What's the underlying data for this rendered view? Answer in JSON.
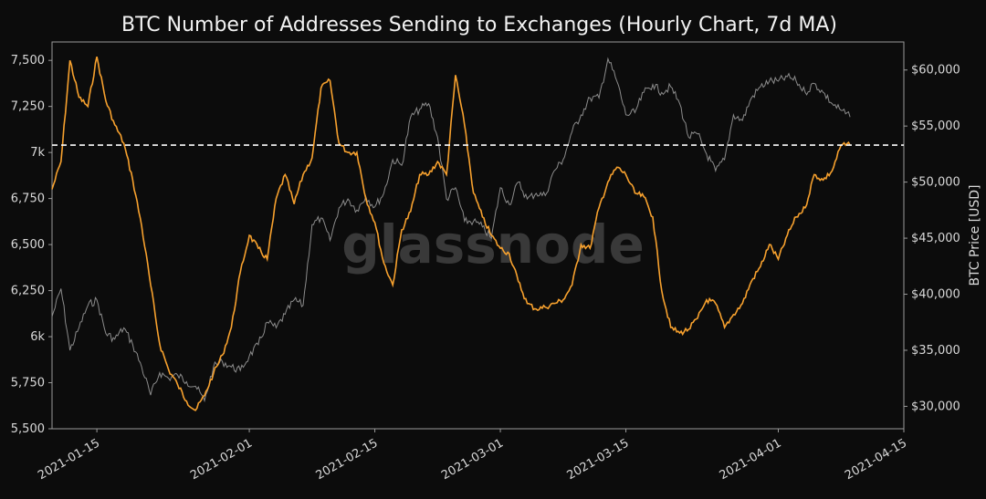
{
  "colors": {
    "background": "#0c0c0c",
    "plot_background": "#0c0c0c",
    "address_line": "#f7a12e",
    "price_line": "#8c8c8c",
    "threshold_line": "#ffffff",
    "axis": "#9a9a9a"
  },
  "watermark": "glassnode",
  "chart_data": {
    "type": "line",
    "title": "BTC Number of Addresses Sending to Exchanges (Hourly Chart, 7d MA)",
    "xlabel": "",
    "ylabel": "",
    "y2label": "BTC Price [USD]",
    "x_range": [
      "2021-01-10",
      "2021-04-15"
    ],
    "ylim": [
      5500,
      7600
    ],
    "y2lim": [
      28000,
      62500
    ],
    "x_ticks": [
      "2021-01-15",
      "2021-02-01",
      "2021-02-15",
      "2021-03-01",
      "2021-03-15",
      "2021-04-01",
      "2021-04-15"
    ],
    "y_ticks": [
      {
        "value": 5500,
        "label": "5,500"
      },
      {
        "value": 5750,
        "label": "5,750"
      },
      {
        "value": 6000,
        "label": "6k"
      },
      {
        "value": 6250,
        "label": "6,250"
      },
      {
        "value": 6500,
        "label": "6,500"
      },
      {
        "value": 6750,
        "label": "6,750"
      },
      {
        "value": 7000,
        "label": "7k"
      },
      {
        "value": 7250,
        "label": "7,250"
      },
      {
        "value": 7500,
        "label": "7,500"
      }
    ],
    "y2_ticks": [
      {
        "value": 30000,
        "label": "$30,000"
      },
      {
        "value": 35000,
        "label": "$35,000"
      },
      {
        "value": 40000,
        "label": "$40,000"
      },
      {
        "value": 45000,
        "label": "$45,000"
      },
      {
        "value": 50000,
        "label": "$50,000"
      },
      {
        "value": 55000,
        "label": "$55,000"
      },
      {
        "value": 60000,
        "label": "$60,000"
      }
    ],
    "threshold": 7040,
    "grid": false,
    "series": [
      {
        "axis": "left",
        "x": [
          "2021-01-10",
          "2021-01-11",
          "2021-01-12",
          "2021-01-13",
          "2021-01-14",
          "2021-01-15",
          "2021-01-16",
          "2021-01-17",
          "2021-01-18",
          "2021-01-19",
          "2021-01-20",
          "2021-01-21",
          "2021-01-22",
          "2021-01-23",
          "2021-01-24",
          "2021-01-25",
          "2021-01-26",
          "2021-01-27",
          "2021-01-28",
          "2021-01-29",
          "2021-01-30",
          "2021-01-31",
          "2021-02-01",
          "2021-02-02",
          "2021-02-03",
          "2021-02-04",
          "2021-02-05",
          "2021-02-06",
          "2021-02-07",
          "2021-02-08",
          "2021-02-09",
          "2021-02-10",
          "2021-02-11",
          "2021-02-12",
          "2021-02-13",
          "2021-02-14",
          "2021-02-15",
          "2021-02-16",
          "2021-02-17",
          "2021-02-18",
          "2021-02-19",
          "2021-02-20",
          "2021-02-21",
          "2021-02-22",
          "2021-02-23",
          "2021-02-24",
          "2021-02-25",
          "2021-02-26",
          "2021-02-27",
          "2021-02-28",
          "2021-03-01",
          "2021-03-02",
          "2021-03-03",
          "2021-03-04",
          "2021-03-05",
          "2021-03-06",
          "2021-03-07",
          "2021-03-08",
          "2021-03-09",
          "2021-03-10",
          "2021-03-11",
          "2021-03-12",
          "2021-03-13",
          "2021-03-14",
          "2021-03-15",
          "2021-03-16",
          "2021-03-17",
          "2021-03-18",
          "2021-03-19",
          "2021-03-20",
          "2021-03-21",
          "2021-03-22",
          "2021-03-23",
          "2021-03-24",
          "2021-03-25",
          "2021-03-26",
          "2021-03-27",
          "2021-03-28",
          "2021-03-29",
          "2021-03-30",
          "2021-03-31",
          "2021-04-01",
          "2021-04-02",
          "2021-04-03",
          "2021-04-04",
          "2021-04-05",
          "2021-04-06",
          "2021-04-07",
          "2021-04-08",
          "2021-04-09"
        ],
        "values": [
          6800,
          6950,
          7500,
          7300,
          7250,
          7520,
          7280,
          7150,
          7050,
          6850,
          6600,
          6280,
          5960,
          5820,
          5740,
          5650,
          5600,
          5680,
          5800,
          5900,
          6050,
          6350,
          6550,
          6480,
          6420,
          6750,
          6880,
          6720,
          6880,
          6970,
          7350,
          7390,
          7050,
          7000,
          7000,
          6750,
          6620,
          6400,
          6280,
          6580,
          6680,
          6880,
          6880,
          6950,
          6880,
          7420,
          7150,
          6780,
          6650,
          6550,
          6480,
          6450,
          6300,
          6180,
          6150,
          6160,
          6180,
          6200,
          6280,
          6500,
          6480,
          6700,
          6840,
          6920,
          6880,
          6780,
          6760,
          6650,
          6250,
          6050,
          6020,
          6040,
          6100,
          6200,
          6180,
          6050,
          6120,
          6180,
          6300,
          6380,
          6500,
          6420,
          6550,
          6650,
          6700,
          6880,
          6850,
          6900,
          7040,
          7040
        ],
        "values_note": ""
      },
      {
        "axis": "right",
        "x": [
          "2021-01-10",
          "2021-01-11",
          "2021-01-12",
          "2021-01-13",
          "2021-01-14",
          "2021-01-15",
          "2021-01-16",
          "2021-01-17",
          "2021-01-18",
          "2021-01-19",
          "2021-01-20",
          "2021-01-21",
          "2021-01-22",
          "2021-01-23",
          "2021-01-24",
          "2021-01-25",
          "2021-01-26",
          "2021-01-27",
          "2021-01-28",
          "2021-01-29",
          "2021-01-30",
          "2021-01-31",
          "2021-02-01",
          "2021-02-02",
          "2021-02-03",
          "2021-02-04",
          "2021-02-05",
          "2021-02-06",
          "2021-02-07",
          "2021-02-08",
          "2021-02-09",
          "2021-02-10",
          "2021-02-11",
          "2021-02-12",
          "2021-02-13",
          "2021-02-14",
          "2021-02-15",
          "2021-02-16",
          "2021-02-17",
          "2021-02-18",
          "2021-02-19",
          "2021-02-20",
          "2021-02-21",
          "2021-02-22",
          "2021-02-23",
          "2021-02-24",
          "2021-02-25",
          "2021-02-26",
          "2021-02-27",
          "2021-02-28",
          "2021-03-01",
          "2021-03-02",
          "2021-03-03",
          "2021-03-04",
          "2021-03-05",
          "2021-03-06",
          "2021-03-07",
          "2021-03-08",
          "2021-03-09",
          "2021-03-10",
          "2021-03-11",
          "2021-03-12",
          "2021-03-13",
          "2021-03-14",
          "2021-03-15",
          "2021-03-16",
          "2021-03-17",
          "2021-03-18",
          "2021-03-19",
          "2021-03-20",
          "2021-03-21",
          "2021-03-22",
          "2021-03-23",
          "2021-03-24",
          "2021-03-25",
          "2021-03-26",
          "2021-03-27",
          "2021-03-28",
          "2021-03-29",
          "2021-03-30",
          "2021-03-31",
          "2021-04-01",
          "2021-04-02",
          "2021-04-03",
          "2021-04-04",
          "2021-04-05",
          "2021-04-06",
          "2021-04-07",
          "2021-04-08",
          "2021-04-09"
        ],
        "values": [
          38000,
          40500,
          35000,
          37000,
          39000,
          39500,
          36500,
          36000,
          37000,
          35500,
          33500,
          31000,
          33000,
          32500,
          32800,
          32200,
          31800,
          30500,
          33500,
          34000,
          33500,
          33200,
          34500,
          35500,
          37500,
          37000,
          38200,
          39500,
          39000,
          46200,
          46800,
          44800,
          47700,
          48500,
          47500,
          48700,
          47800,
          49000,
          52000,
          51500,
          55800,
          56500,
          57000,
          54000,
          48500,
          49500,
          46500,
          46500,
          46000,
          45000,
          49500,
          48000,
          50000,
          48500,
          49000,
          48800,
          51000,
          52000,
          54500,
          56000,
          57500,
          57500,
          61000,
          59000,
          56000,
          56200,
          58000,
          58700,
          58000,
          58500,
          57000,
          54000,
          54300,
          52500,
          51000,
          52000,
          56000,
          55500,
          57500,
          58500,
          59000,
          59000,
          59400,
          59000,
          58000,
          58800,
          58000,
          57000,
          56400,
          55800
        ]
      }
    ]
  }
}
